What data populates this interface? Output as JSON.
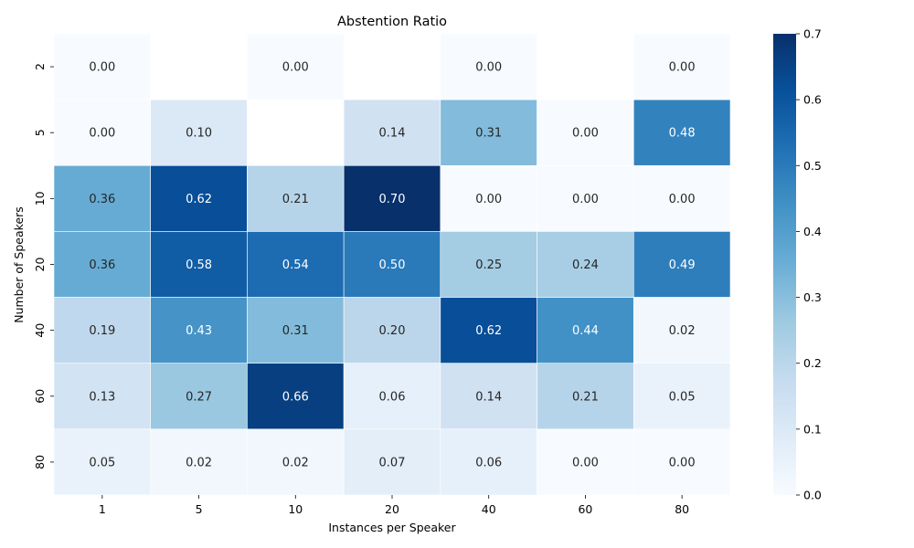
{
  "chart_data": {
    "type": "heatmap",
    "title": "Abstention Ratio",
    "xlabel": "Instances per Speaker",
    "ylabel": "Number of Speakers",
    "x_categories": [
      "1",
      "5",
      "10",
      "20",
      "40",
      "60",
      "80"
    ],
    "y_categories": [
      "2",
      "5",
      "10",
      "20",
      "40",
      "60",
      "80"
    ],
    "values": [
      [
        0.0,
        null,
        0.0,
        null,
        0.0,
        null,
        0.0
      ],
      [
        0.0,
        0.1,
        null,
        0.14,
        0.31,
        0.0,
        0.48
      ],
      [
        0.36,
        0.62,
        0.21,
        0.7,
        0.0,
        0.0,
        0.0
      ],
      [
        0.36,
        0.58,
        0.54,
        0.5,
        0.25,
        0.24,
        0.49
      ],
      [
        0.19,
        0.43,
        0.31,
        0.2,
        0.62,
        0.44,
        0.02
      ],
      [
        0.13,
        0.27,
        0.66,
        0.06,
        0.14,
        0.21,
        0.05
      ],
      [
        0.05,
        0.02,
        0.02,
        0.07,
        0.06,
        0.0,
        0.0
      ]
    ],
    "value_format": "0.00",
    "colormap": "Blues",
    "colorbar": {
      "range": [
        0.0,
        0.7
      ],
      "ticks": [
        "0.0",
        "0.1",
        "0.2",
        "0.3",
        "0.4",
        "0.5",
        "0.6",
        "0.7"
      ],
      "placement": "right"
    },
    "grid": false
  }
}
